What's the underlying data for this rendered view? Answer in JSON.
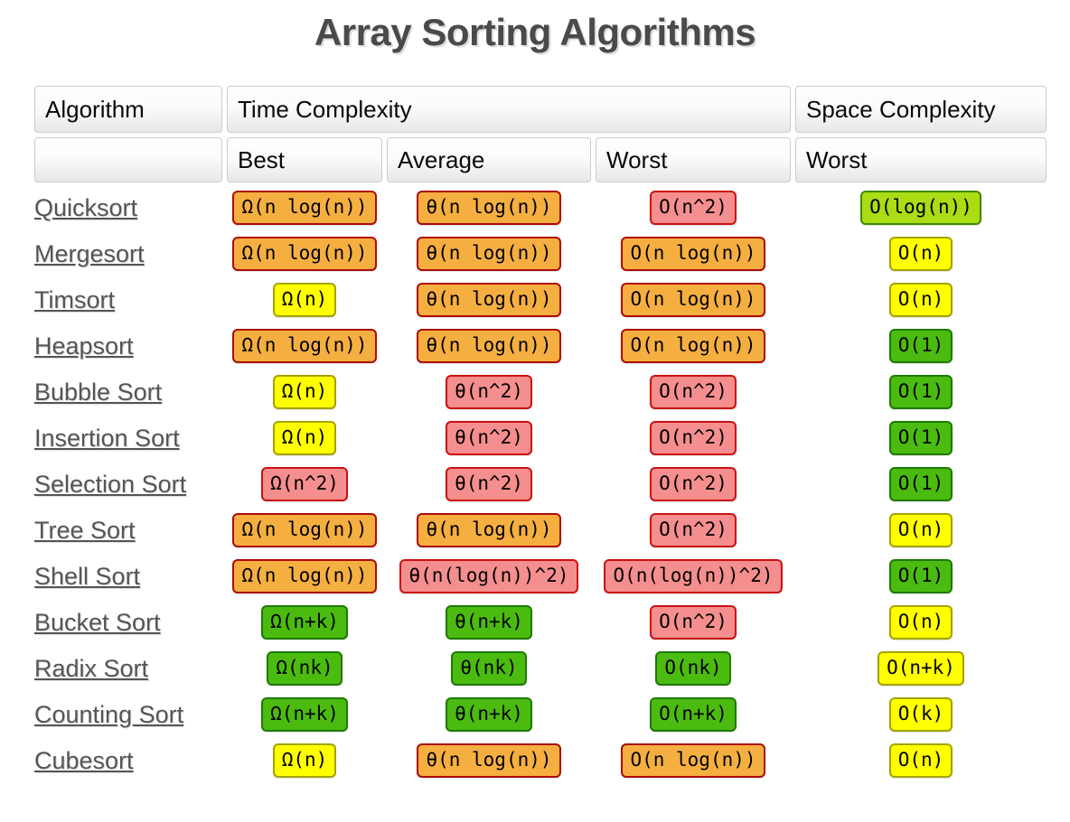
{
  "page": {
    "title": "Array Sorting Algorithms"
  },
  "colors": {
    "green": {
      "bg": "#4BBB10",
      "border": "#1E7A00"
    },
    "yellowgreen": {
      "bg": "#ABDC14",
      "border": "#3F8A00"
    },
    "yellow": {
      "bg": "#FFFF00",
      "border": "#A3A300"
    },
    "orange": {
      "bg": "#F5AF41",
      "border": "#AD0A0A"
    },
    "red": {
      "bg": "#F58E8E",
      "border": "#CC1111"
    }
  },
  "chart_data": {
    "type": "table",
    "title": "Array Sorting Algorithms",
    "header": {
      "col_algorithm": "Algorithm",
      "group_time": "Time Complexity",
      "group_space": "Space Complexity",
      "sub_best": "Best",
      "sub_average": "Average",
      "sub_worst": "Worst",
      "sub_space_worst": "Worst"
    },
    "rows": [
      {
        "name": "Quicksort",
        "best": {
          "text": "Ω(n log(n))",
          "color": "orange"
        },
        "average": {
          "text": "θ(n log(n))",
          "color": "orange"
        },
        "worst": {
          "text": "O(n^2)",
          "color": "red"
        },
        "space": {
          "text": "O(log(n))",
          "color": "yellowgreen"
        }
      },
      {
        "name": "Mergesort",
        "best": {
          "text": "Ω(n log(n))",
          "color": "orange"
        },
        "average": {
          "text": "θ(n log(n))",
          "color": "orange"
        },
        "worst": {
          "text": "O(n log(n))",
          "color": "orange"
        },
        "space": {
          "text": "O(n)",
          "color": "yellow"
        }
      },
      {
        "name": "Timsort",
        "best": {
          "text": "Ω(n)",
          "color": "yellow"
        },
        "average": {
          "text": "θ(n log(n))",
          "color": "orange"
        },
        "worst": {
          "text": "O(n log(n))",
          "color": "orange"
        },
        "space": {
          "text": "O(n)",
          "color": "yellow"
        }
      },
      {
        "name": "Heapsort",
        "best": {
          "text": "Ω(n log(n))",
          "color": "orange"
        },
        "average": {
          "text": "θ(n log(n))",
          "color": "orange"
        },
        "worst": {
          "text": "O(n log(n))",
          "color": "orange"
        },
        "space": {
          "text": "O(1)",
          "color": "green"
        }
      },
      {
        "name": "Bubble Sort",
        "best": {
          "text": "Ω(n)",
          "color": "yellow"
        },
        "average": {
          "text": "θ(n^2)",
          "color": "red"
        },
        "worst": {
          "text": "O(n^2)",
          "color": "red"
        },
        "space": {
          "text": "O(1)",
          "color": "green"
        }
      },
      {
        "name": "Insertion Sort",
        "best": {
          "text": "Ω(n)",
          "color": "yellow"
        },
        "average": {
          "text": "θ(n^2)",
          "color": "red"
        },
        "worst": {
          "text": "O(n^2)",
          "color": "red"
        },
        "space": {
          "text": "O(1)",
          "color": "green"
        }
      },
      {
        "name": "Selection Sort",
        "best": {
          "text": "Ω(n^2)",
          "color": "red"
        },
        "average": {
          "text": "θ(n^2)",
          "color": "red"
        },
        "worst": {
          "text": "O(n^2)",
          "color": "red"
        },
        "space": {
          "text": "O(1)",
          "color": "green"
        }
      },
      {
        "name": "Tree Sort",
        "best": {
          "text": "Ω(n log(n))",
          "color": "orange"
        },
        "average": {
          "text": "θ(n log(n))",
          "color": "orange"
        },
        "worst": {
          "text": "O(n^2)",
          "color": "red"
        },
        "space": {
          "text": "O(n)",
          "color": "yellow"
        }
      },
      {
        "name": "Shell Sort",
        "best": {
          "text": "Ω(n log(n))",
          "color": "orange"
        },
        "average": {
          "text": "θ(n(log(n))^2)",
          "color": "red"
        },
        "worst": {
          "text": "O(n(log(n))^2)",
          "color": "red"
        },
        "space": {
          "text": "O(1)",
          "color": "green"
        }
      },
      {
        "name": "Bucket Sort",
        "best": {
          "text": "Ω(n+k)",
          "color": "green"
        },
        "average": {
          "text": "θ(n+k)",
          "color": "green"
        },
        "worst": {
          "text": "O(n^2)",
          "color": "red"
        },
        "space": {
          "text": "O(n)",
          "color": "yellow"
        }
      },
      {
        "name": "Radix Sort",
        "best": {
          "text": "Ω(nk)",
          "color": "green"
        },
        "average": {
          "text": "θ(nk)",
          "color": "green"
        },
        "worst": {
          "text": "O(nk)",
          "color": "green"
        },
        "space": {
          "text": "O(n+k)",
          "color": "yellow"
        }
      },
      {
        "name": "Counting Sort",
        "best": {
          "text": "Ω(n+k)",
          "color": "green"
        },
        "average": {
          "text": "θ(n+k)",
          "color": "green"
        },
        "worst": {
          "text": "O(n+k)",
          "color": "green"
        },
        "space": {
          "text": "O(k)",
          "color": "yellow"
        }
      },
      {
        "name": "Cubesort",
        "best": {
          "text": "Ω(n)",
          "color": "yellow"
        },
        "average": {
          "text": "θ(n log(n))",
          "color": "orange"
        },
        "worst": {
          "text": "O(n log(n))",
          "color": "orange"
        },
        "space": {
          "text": "O(n)",
          "color": "yellow"
        }
      }
    ]
  }
}
